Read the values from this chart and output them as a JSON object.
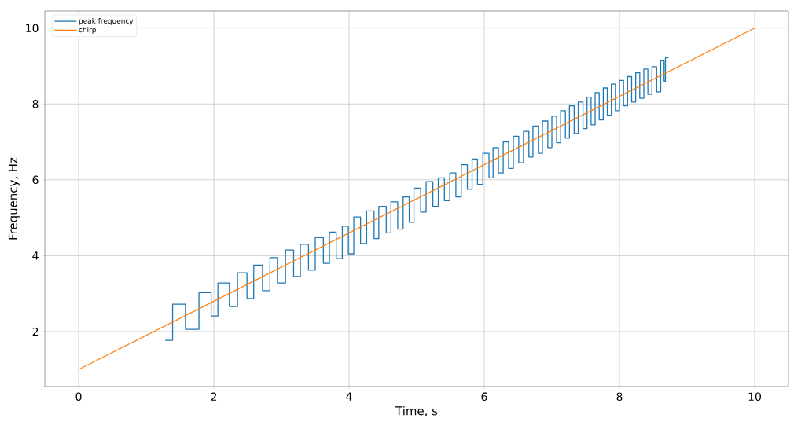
{
  "chart_data": {
    "type": "line",
    "xlabel": "Time, s",
    "ylabel": "Frequency, Hz",
    "xlim": [
      -0.5,
      10.5
    ],
    "ylim": [
      0.55,
      10.45
    ],
    "xticks": [
      0,
      2,
      4,
      6,
      8,
      10
    ],
    "yticks": [
      2,
      4,
      6,
      8,
      10
    ],
    "grid": true,
    "legend": "top left",
    "series": [
      {
        "name": "peak frequency",
        "color": "#1f77b4",
        "type": "step",
        "x": [
          1.28,
          1.39,
          1.58,
          1.78,
          1.96,
          2.06,
          2.23,
          2.35,
          2.49,
          2.59,
          2.72,
          2.83,
          2.94,
          3.06,
          3.18,
          3.28,
          3.4,
          3.5,
          3.62,
          3.71,
          3.81,
          3.9,
          3.99,
          4.07,
          4.17,
          4.26,
          4.37,
          4.44,
          4.55,
          4.62,
          4.72,
          4.8,
          4.89,
          4.96,
          5.06,
          5.14,
          5.24,
          5.32,
          5.41,
          5.49,
          5.58,
          5.66,
          5.75,
          5.82,
          5.9,
          5.98,
          6.07,
          6.13,
          6.21,
          6.28,
          6.36,
          6.43,
          6.51,
          6.58,
          6.66,
          6.72,
          6.8,
          6.86,
          6.94,
          7.0,
          7.07,
          7.13,
          7.2,
          7.26,
          7.33,
          7.39,
          7.46,
          7.52,
          7.58,
          7.64,
          7.7,
          7.76,
          7.82,
          7.88,
          7.94,
          8.0,
          8.06,
          8.12,
          8.18,
          8.24,
          8.3,
          8.36,
          8.42,
          8.48,
          8.55,
          8.61,
          8.66,
          8.68,
          8.72
        ],
        "values": [
          1.77,
          2.72,
          2.06,
          3.03,
          2.41,
          3.28,
          2.66,
          3.55,
          2.87,
          3.75,
          3.08,
          3.95,
          3.28,
          4.15,
          3.45,
          4.3,
          3.62,
          4.48,
          3.8,
          4.62,
          3.92,
          4.78,
          4.05,
          5.02,
          4.32,
          5.18,
          4.45,
          5.3,
          4.6,
          5.42,
          4.7,
          5.55,
          4.88,
          5.78,
          5.15,
          5.95,
          5.3,
          6.05,
          5.45,
          6.18,
          5.55,
          6.4,
          5.75,
          6.55,
          5.88,
          6.7,
          6.05,
          6.85,
          6.18,
          7.0,
          6.3,
          7.15,
          6.45,
          7.28,
          6.6,
          7.42,
          6.7,
          7.55,
          6.85,
          7.68,
          6.98,
          7.82,
          7.1,
          7.95,
          7.22,
          8.05,
          7.35,
          8.18,
          7.45,
          8.3,
          7.58,
          8.42,
          7.7,
          8.52,
          7.82,
          8.62,
          7.95,
          8.72,
          8.05,
          8.82,
          8.15,
          8.92,
          8.25,
          8.98,
          8.32,
          9.15,
          8.6,
          9.22,
          9.25
        ]
      },
      {
        "name": "chirp",
        "color": "#ff7f0e",
        "x": [
          0,
          10
        ],
        "values": [
          1,
          10
        ]
      }
    ]
  }
}
